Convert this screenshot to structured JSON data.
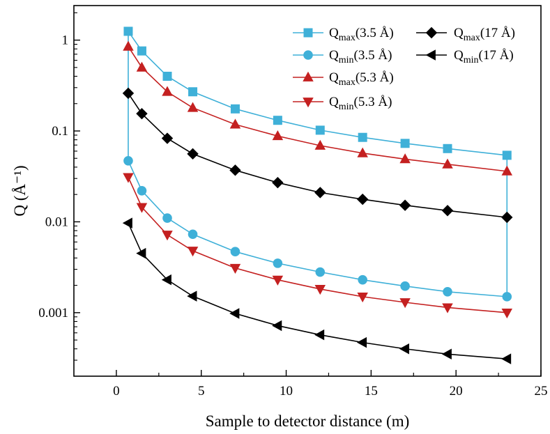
{
  "chart_data": {
    "type": "line",
    "xlabel": "Sample to detector distance (m)",
    "ylabel": "Q (Å⁻¹)",
    "xlim": [
      -2.5,
      25
    ],
    "ylim": [
      0.0002,
      2.4
    ],
    "yscale": "log",
    "xticks": [
      0,
      5,
      10,
      15,
      20,
      25
    ],
    "xtick_labels": [
      "0",
      "5",
      "10",
      "15",
      "20",
      "25"
    ],
    "yticks": [
      0.001,
      0.01,
      0.1,
      1
    ],
    "ytick_labels": [
      "0.001",
      "0.01",
      "0.1",
      "1"
    ],
    "grid": false,
    "legend_position": "top-right",
    "x": [
      0.7,
      1.5,
      3,
      4.5,
      7,
      9.5,
      12,
      14.5,
      17,
      19.5,
      23
    ],
    "series": [
      {
        "base": "Q",
        "sub": "max",
        "paren": "(3.5 Å)",
        "color": "#3fb0d8",
        "marker": "square",
        "values": [
          1.25,
          0.76,
          0.4,
          0.27,
          0.175,
          0.131,
          0.102,
          0.085,
          0.073,
          0.064,
          0.054
        ]
      },
      {
        "base": "Q",
        "sub": "min",
        "paren": "(3.5 Å)",
        "color": "#3fb0d8",
        "marker": "circle",
        "values": [
          0.047,
          0.022,
          0.011,
          0.0073,
          0.0047,
          0.0035,
          0.0028,
          0.0023,
          0.00196,
          0.0017,
          0.0015
        ]
      },
      {
        "base": "Q",
        "sub": "max",
        "paren": "(5.3 Å)",
        "color": "#c42020",
        "marker": "triangle-up",
        "values": [
          0.85,
          0.5,
          0.27,
          0.18,
          0.118,
          0.088,
          0.069,
          0.057,
          0.049,
          0.043,
          0.036
        ]
      },
      {
        "base": "Q",
        "sub": "min",
        "paren": "(5.3 Å)",
        "color": "#c42020",
        "marker": "triangle-down",
        "values": [
          0.031,
          0.0145,
          0.0072,
          0.0048,
          0.0031,
          0.0023,
          0.00182,
          0.0015,
          0.0013,
          0.00114,
          0.001
        ]
      },
      {
        "base": "Q",
        "sub": "max",
        "paren": "(17 Å)",
        "color": "#000000",
        "marker": "diamond",
        "values": [
          0.26,
          0.155,
          0.083,
          0.056,
          0.037,
          0.027,
          0.021,
          0.0177,
          0.0152,
          0.0133,
          0.0112
        ]
      },
      {
        "base": "Q",
        "sub": "min",
        "paren": "(17 Å)",
        "color": "#000000",
        "marker": "triangle-left",
        "values": [
          0.0097,
          0.0045,
          0.0023,
          0.00152,
          0.00098,
          0.00072,
          0.00057,
          0.00047,
          0.0004,
          0.00035,
          0.00031
        ]
      }
    ],
    "connectors": [
      {
        "color": "#3fb0d8",
        "x": 0.7,
        "from_series": 0,
        "to_series": 1,
        "at_index": 0
      },
      {
        "color": "#3fb0d8",
        "x": 23,
        "from_series": 0,
        "to_series": 1,
        "at_index": 10
      }
    ],
    "legend_order": [
      0,
      4,
      1,
      5,
      2,
      3
    ]
  }
}
